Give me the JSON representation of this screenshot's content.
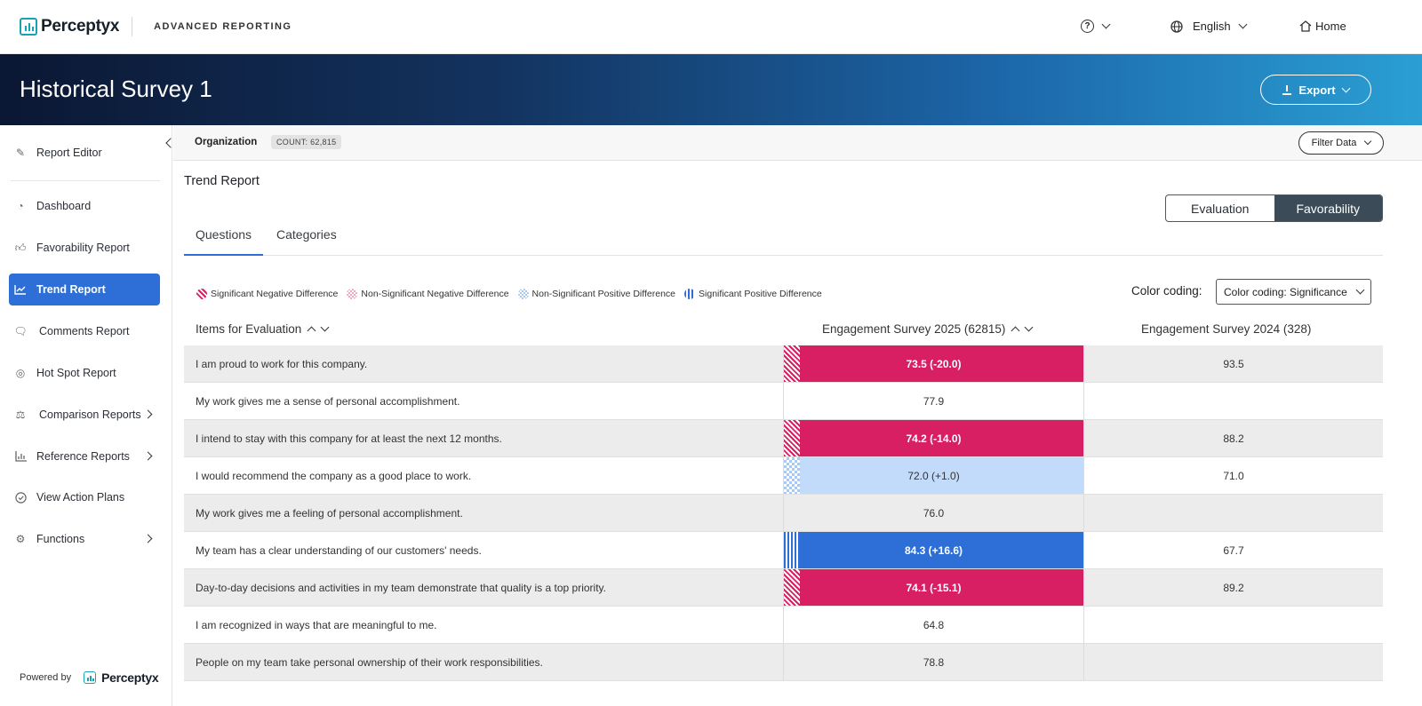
{
  "topbar": {
    "brand": "Perceptyx",
    "app_name": "ADVANCED REPORTING",
    "help_icon": "?",
    "language": "English",
    "home": "Home"
  },
  "banner": {
    "title": "Historical Survey 1",
    "export_label": "Export"
  },
  "sidebar": {
    "items": [
      {
        "label": "Report Editor",
        "icon": "edit-icon"
      },
      {
        "label": "Dashboard",
        "icon": "gauge-icon"
      },
      {
        "label": "Favorability Report",
        "icon": "thumbs-up-icon"
      },
      {
        "label": "Trend Report",
        "icon": "line-chart-icon",
        "active": true
      },
      {
        "label": "Comments Report",
        "icon": "chat-bubbles-icon"
      },
      {
        "label": "Hot Spot Report",
        "icon": "target-icon"
      },
      {
        "label": "Comparison Reports",
        "icon": "scale-icon",
        "has_submenu": true
      },
      {
        "label": "Reference Reports",
        "icon": "bar-chart-icon",
        "has_submenu": true
      },
      {
        "label": "View Action Plans",
        "icon": "check-circle-icon"
      },
      {
        "label": "Functions",
        "icon": "gear-icon",
        "has_submenu": true
      }
    ],
    "powered_by": "Powered by",
    "powered_brand": "Perceptyx"
  },
  "filterbar": {
    "org_label": "Organization",
    "count_label": "COUNT: 62,815",
    "filter_button": "Filter Data"
  },
  "report": {
    "title": "Trend Report",
    "toggle": {
      "left": "Evaluation",
      "right": "Favorability",
      "selected": "Favorability"
    },
    "tabs": [
      {
        "label": "Questions",
        "active": true
      },
      {
        "label": "Categories",
        "active": false
      }
    ]
  },
  "legend": [
    {
      "label": "Significant Negative Difference",
      "key": "sn"
    },
    {
      "label": "Non-Significant Negative Difference",
      "key": "nn"
    },
    {
      "label": "Non-Significant Positive Difference",
      "key": "np"
    },
    {
      "label": "Significant Positive Difference",
      "key": "sp"
    }
  ],
  "color_coding": {
    "label": "Color coding:",
    "selected": "Color coding: Significance"
  },
  "table": {
    "headers": {
      "items": "Items for Evaluation",
      "col_2025": "Engagement Survey 2025 (62815)",
      "col_2024": "Engagement Survey 2024 (328)"
    },
    "rows": [
      {
        "item": "I am proud to work for this company.",
        "v2025": "73.5  (-20.0)",
        "v2024": "93.5",
        "sig": "sn"
      },
      {
        "item": "My work gives me a sense of personal accomplishment.",
        "v2025": "77.9",
        "v2024": "",
        "sig": ""
      },
      {
        "item": "I intend to stay with this company for at least the next 12 months.",
        "v2025": "74.2  (-14.0)",
        "v2024": "88.2",
        "sig": "sn"
      },
      {
        "item": "I would recommend the company as a good place to work.",
        "v2025": "72.0 (+1.0)",
        "v2024": "71.0",
        "sig": "np"
      },
      {
        "item": "My work gives me a feeling of personal accomplishment.",
        "v2025": "76.0",
        "v2024": "",
        "sig": ""
      },
      {
        "item": "My team has a clear understanding of our customers' needs.",
        "v2025": "84.3 (+16.6)",
        "v2024": "67.7",
        "sig": "sp"
      },
      {
        "item": "Day-to-day decisions and activities in my team demonstrate that quality is a top priority.",
        "v2025": "74.1  (-15.1)",
        "v2024": "89.2",
        "sig": "sn"
      },
      {
        "item": "I am recognized in ways that are meaningful to me.",
        "v2025": "64.8",
        "v2024": "",
        "sig": ""
      },
      {
        "item": "People on my team take personal ownership of their work responsibilities.",
        "v2025": "78.8",
        "v2024": "",
        "sig": ""
      }
    ]
  },
  "colors": {
    "significant_negative": "#d81f63",
    "significant_positive": "#2d6fd6",
    "nonsignificant_positive": "#c2dbfa",
    "accent": "#2d6fd6"
  }
}
